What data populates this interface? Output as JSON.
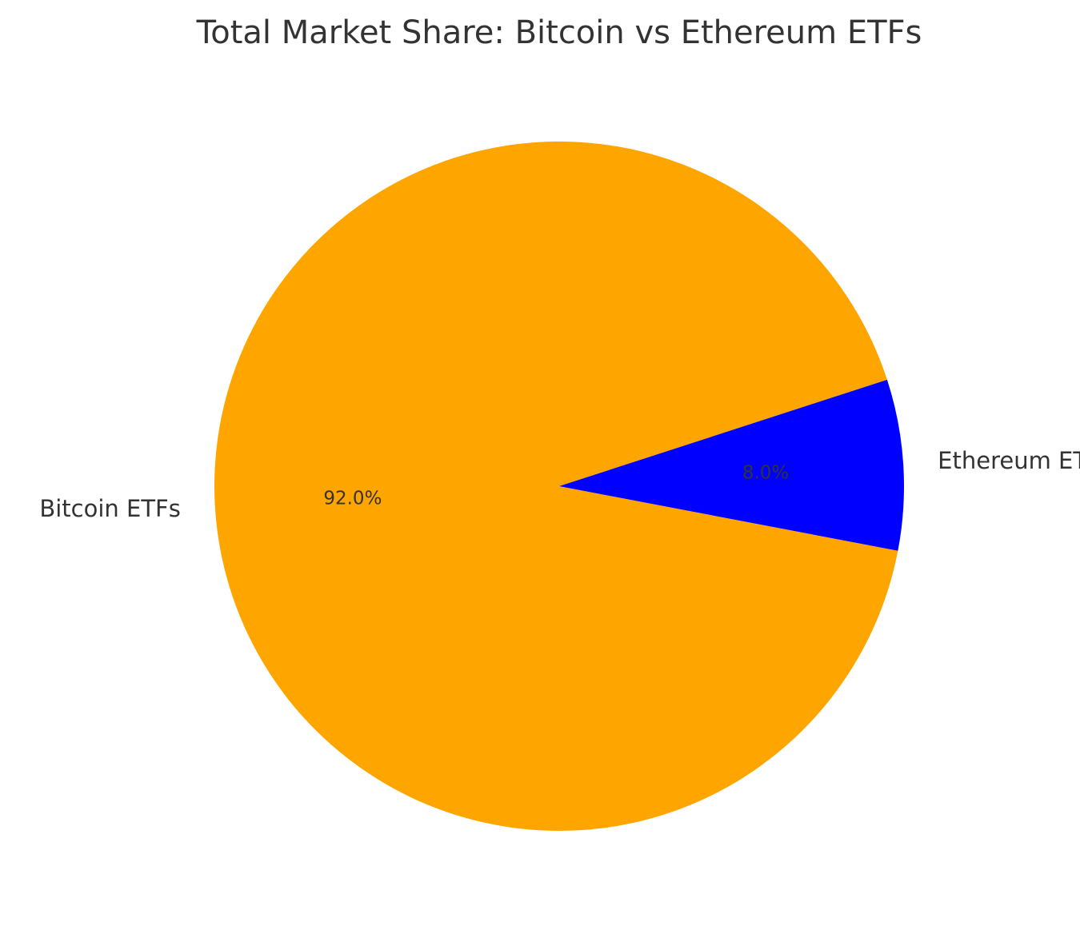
{
  "chart_data": {
    "type": "pie",
    "title": "Total Market Share: Bitcoin vs Ethereum ETFs",
    "slices": [
      {
        "label": "Bitcoin ETFs",
        "value": 92.0,
        "pct_label": "92.0%",
        "color": "#FFA500"
      },
      {
        "label": "Ethereum ETFs",
        "value": 8.0,
        "pct_label": "8.0%",
        "color": "#0000FF"
      }
    ],
    "legend": "none"
  }
}
